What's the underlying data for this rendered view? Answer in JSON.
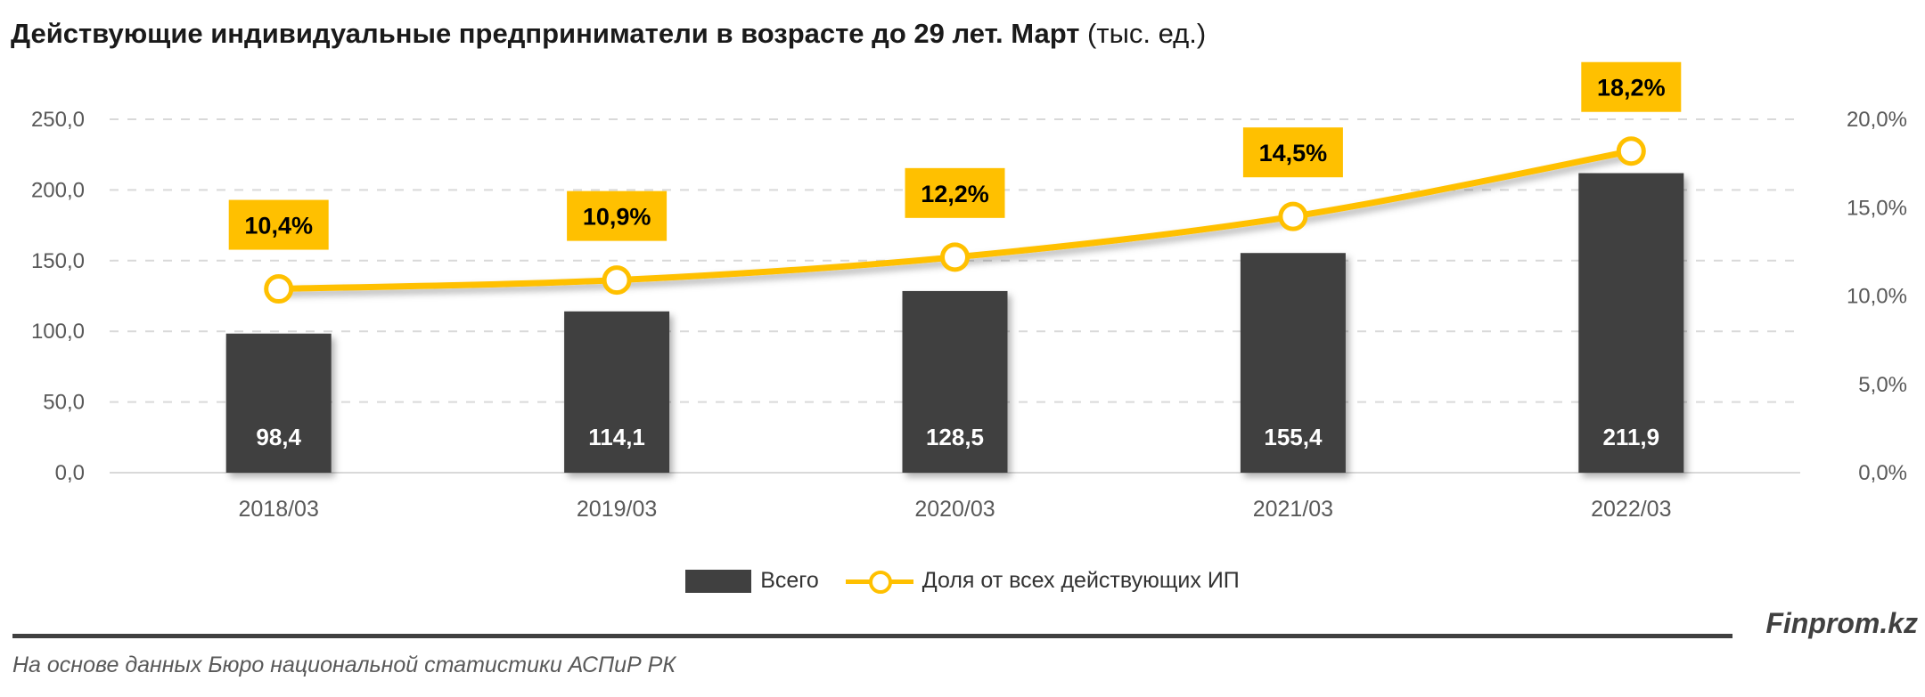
{
  "title": {
    "main": "Действующие индивидуальные предприниматели в возрасте до 29 лет. Март",
    "unit": "(тыс. ед.)"
  },
  "chart_data": {
    "type": "bar+line",
    "categories": [
      "2018/03",
      "2019/03",
      "2020/03",
      "2021/03",
      "2022/03"
    ],
    "series": [
      {
        "name": "Всего",
        "type": "bar",
        "axis": "left",
        "values": [
          98.4,
          114.1,
          128.5,
          155.4,
          211.9
        ],
        "labels": [
          "98,4",
          "114,1",
          "128,5",
          "155,4",
          "211,9"
        ],
        "color": "#404040"
      },
      {
        "name": "Доля от всех действующих ИП",
        "type": "line",
        "axis": "right",
        "values": [
          10.4,
          10.9,
          12.2,
          14.5,
          18.2
        ],
        "labels": [
          "10,4%",
          "10,9%",
          "12,2%",
          "14,5%",
          "18,2%"
        ],
        "color": "#FFC000"
      }
    ],
    "y_left": {
      "range": [
        0,
        250
      ],
      "ticks": [
        "0,0",
        "50,0",
        "100,0",
        "150,0",
        "200,0",
        "250,0"
      ]
    },
    "y_right": {
      "range": [
        0,
        20
      ],
      "ticks": [
        "0,0%",
        "5,0%",
        "10,0%",
        "15,0%",
        "20,0%"
      ]
    },
    "grid": true,
    "legend_position": "bottom"
  },
  "legend": {
    "bar": "Всего",
    "line": "Доля от всех действующих ИП"
  },
  "footer": {
    "brand": "Finprom.kz",
    "source": "На основе данных Бюро национальной статистики АСПиР РК"
  }
}
